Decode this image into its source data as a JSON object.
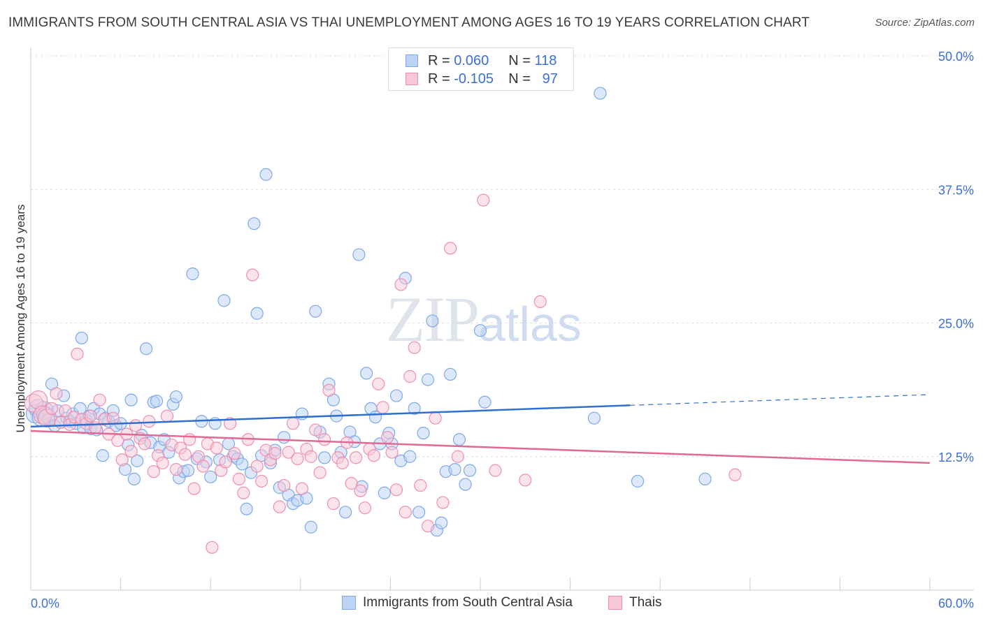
{
  "title": "IMMIGRANTS FROM SOUTH CENTRAL ASIA VS THAI UNEMPLOYMENT AMONG AGES 16 TO 19 YEARS CORRELATION CHART",
  "source": "Source: ZipAtlas.com",
  "watermark": {
    "zip": "ZIP",
    "atlas": "atlas"
  },
  "legend": {
    "rows": [
      {
        "r_label": "R =",
        "r_value": "0.060",
        "n_label": "N =",
        "n_value": "118",
        "color": "#7ea8e8",
        "fill": "#bcd3f5"
      },
      {
        "r_label": "R =",
        "r_value": "-0.105",
        "n_label": "N =",
        "n_value": "97",
        "color": "#ee8fae",
        "fill": "#f7c7d7"
      }
    ]
  },
  "bottom_legend": [
    "Immigrants from South Central Asia",
    "Thais"
  ],
  "chart_data": {
    "type": "scatter",
    "title": "IMMIGRANTS FROM SOUTH CENTRAL ASIA VS THAI UNEMPLOYMENT AMONG AGES 16 TO 19 YEARS CORRELATION CHART",
    "xlabel": "",
    "ylabel": "Unemployment Among Ages 16 to 19 years",
    "xlim": [
      0,
      60
    ],
    "ylim": [
      0,
      50
    ],
    "x_tick_labels": [
      "0.0%",
      "60.0%"
    ],
    "y_ticks": [
      12.5,
      25.0,
      37.5,
      50.0
    ],
    "y_tick_labels": [
      "12.5%",
      "25.0%",
      "37.5%",
      "50.0%"
    ],
    "grid": true,
    "series": [
      {
        "name": "Immigrants from South Central Asia",
        "color": "#7ea8e8",
        "fill": "#bcd3f5",
        "trend": {
          "x0": 0,
          "y0": 15.3,
          "x1": 40,
          "y1": 17.3,
          "dash_to_x": 60,
          "dash_to_y": 18.3,
          "color": "#2f6fd0"
        },
        "points": [
          [
            0.3,
            16.5
          ],
          [
            0.5,
            17
          ],
          [
            0.7,
            16.2
          ],
          [
            0.9,
            16.8
          ],
          [
            1.0,
            16.3
          ],
          [
            1.2,
            16.0
          ],
          [
            1.4,
            19.3
          ],
          [
            1.6,
            15.4
          ],
          [
            1.8,
            16.8
          ],
          [
            2.0,
            15.7
          ],
          [
            2.2,
            18.2
          ],
          [
            2.4,
            16.1
          ],
          [
            2.6,
            15.8
          ],
          [
            2.8,
            16.5
          ],
          [
            3.0,
            15.6
          ],
          [
            3.3,
            17.0
          ],
          [
            3.5,
            15.2
          ],
          [
            3.7,
            15.9
          ],
          [
            3.4,
            23.6
          ],
          [
            3.9,
            16.3
          ],
          [
            4.0,
            15.1
          ],
          [
            4.2,
            17.0
          ],
          [
            4.4,
            15.0
          ],
          [
            4.6,
            16.5
          ],
          [
            4.8,
            12.6
          ],
          [
            5.0,
            16.1
          ],
          [
            5.2,
            15.8
          ],
          [
            5.5,
            16.8
          ],
          [
            5.7,
            15.4
          ],
          [
            6.0,
            15.6
          ],
          [
            6.3,
            11.3
          ],
          [
            6.5,
            13.6
          ],
          [
            6.7,
            17.8
          ],
          [
            6.9,
            10.4
          ],
          [
            7.1,
            12.1
          ],
          [
            7.4,
            14.5
          ],
          [
            7.7,
            22.6
          ],
          [
            8.0,
            13.8
          ],
          [
            8.2,
            17.6
          ],
          [
            8.4,
            17.7
          ],
          [
            8.6,
            13.4
          ],
          [
            8.9,
            14.1
          ],
          [
            9.2,
            12.9
          ],
          [
            9.5,
            17.4
          ],
          [
            9.7,
            18.1
          ],
          [
            9.9,
            10.5
          ],
          [
            10.2,
            11.1
          ],
          [
            10.5,
            11.2
          ],
          [
            10.8,
            29.6
          ],
          [
            11.1,
            12.3
          ],
          [
            11.4,
            15.8
          ],
          [
            11.7,
            12.0
          ],
          [
            12.0,
            10.6
          ],
          [
            12.3,
            15.6
          ],
          [
            12.6,
            12.2
          ],
          [
            12.9,
            27.1
          ],
          [
            13.2,
            13.7
          ],
          [
            13.5,
            12.5
          ],
          [
            13.8,
            12.3
          ],
          [
            14.1,
            11.8
          ],
          [
            14.4,
            7.6
          ],
          [
            14.7,
            11.0
          ],
          [
            14.9,
            34.3
          ],
          [
            15.1,
            25.9
          ],
          [
            15.4,
            12.6
          ],
          [
            15.7,
            38.9
          ],
          [
            16.0,
            11.9
          ],
          [
            16.3,
            13.1
          ],
          [
            16.6,
            9.6
          ],
          [
            16.9,
            14.3
          ],
          [
            17.2,
            8.9
          ],
          [
            17.5,
            8.1
          ],
          [
            17.8,
            8.4
          ],
          [
            18.1,
            16.5
          ],
          [
            18.4,
            8.6
          ],
          [
            18.7,
            5.9
          ],
          [
            19.0,
            26.1
          ],
          [
            19.3,
            14.8
          ],
          [
            19.6,
            12.4
          ],
          [
            19.9,
            19.3
          ],
          [
            20.2,
            17.8
          ],
          [
            20.4,
            16.3
          ],
          [
            20.7,
            12.9
          ],
          [
            21.0,
            7.3
          ],
          [
            21.3,
            14.8
          ],
          [
            21.6,
            13.9
          ],
          [
            21.9,
            31.4
          ],
          [
            22.1,
            9.7
          ],
          [
            22.4,
            20.3
          ],
          [
            22.7,
            17.0
          ],
          [
            23.0,
            16.2
          ],
          [
            23.3,
            13.7
          ],
          [
            23.6,
            9.1
          ],
          [
            23.9,
            14.7
          ],
          [
            24.1,
            13.7
          ],
          [
            24.4,
            18.2
          ],
          [
            24.7,
            12.1
          ],
          [
            25.0,
            29.2
          ],
          [
            25.3,
            12.5
          ],
          [
            25.6,
            17.0
          ],
          [
            25.9,
            7.3
          ],
          [
            26.2,
            14.7
          ],
          [
            26.5,
            19.7
          ],
          [
            26.8,
            25.2
          ],
          [
            27.1,
            5.6
          ],
          [
            27.4,
            6.3
          ],
          [
            27.7,
            11.1
          ],
          [
            28.0,
            20.2
          ],
          [
            28.3,
            11.3
          ],
          [
            28.6,
            14.1
          ],
          [
            29.0,
            9.9
          ],
          [
            29.3,
            11.2
          ],
          [
            30.0,
            24.3
          ],
          [
            30.3,
            17.6
          ],
          [
            37.6,
            16.1
          ],
          [
            38.0,
            46.5
          ],
          [
            40.5,
            10.2
          ],
          [
            45.0,
            10.4
          ]
        ]
      },
      {
        "name": "Thais",
        "color": "#ee8fae",
        "fill": "#f7c7d7",
        "trend": {
          "x0": 0,
          "y0": 14.9,
          "x1": 60,
          "y1": 11.9,
          "color": "#e06a94"
        },
        "points": [
          [
            0.2,
            17.5
          ],
          [
            0.5,
            17.8
          ],
          [
            0.8,
            16.4
          ],
          [
            1.1,
            16.1
          ],
          [
            1.4,
            17.0
          ],
          [
            1.7,
            18.4
          ],
          [
            2.0,
            15.7
          ],
          [
            2.3,
            16.8
          ],
          [
            2.6,
            15.5
          ],
          [
            2.9,
            16.2
          ],
          [
            3.1,
            22.1
          ],
          [
            3.4,
            16.0
          ],
          [
            3.7,
            15.6
          ],
          [
            4.0,
            16.3
          ],
          [
            4.3,
            15.2
          ],
          [
            4.6,
            17.8
          ],
          [
            4.9,
            16.0
          ],
          [
            5.2,
            14.6
          ],
          [
            5.5,
            16.1
          ],
          [
            5.8,
            14.0
          ],
          [
            6.1,
            12.2
          ],
          [
            6.4,
            14.6
          ],
          [
            6.7,
            13.0
          ],
          [
            7.0,
            15.4
          ],
          [
            7.3,
            14.2
          ],
          [
            7.6,
            13.7
          ],
          [
            7.9,
            15.8
          ],
          [
            8.2,
            11.1
          ],
          [
            8.5,
            12.6
          ],
          [
            8.8,
            11.9
          ],
          [
            9.1,
            16.3
          ],
          [
            9.4,
            13.6
          ],
          [
            9.7,
            11.3
          ],
          [
            10.0,
            13.3
          ],
          [
            10.3,
            12.7
          ],
          [
            10.6,
            14.1
          ],
          [
            10.9,
            9.5
          ],
          [
            11.2,
            12.5
          ],
          [
            11.5,
            11.6
          ],
          [
            11.8,
            13.7
          ],
          [
            12.1,
            4.0
          ],
          [
            12.4,
            13.3
          ],
          [
            12.7,
            11.2
          ],
          [
            13.0,
            12.0
          ],
          [
            13.3,
            15.6
          ],
          [
            13.6,
            12.8
          ],
          [
            13.9,
            10.4
          ],
          [
            14.2,
            9.1
          ],
          [
            14.5,
            14.1
          ],
          [
            14.8,
            29.5
          ],
          [
            15.1,
            11.6
          ],
          [
            15.4,
            10.2
          ],
          [
            15.7,
            13.1
          ],
          [
            16.0,
            12.2
          ],
          [
            16.3,
            12.8
          ],
          [
            16.6,
            7.8
          ],
          [
            16.9,
            9.8
          ],
          [
            17.2,
            12.9
          ],
          [
            17.5,
            15.6
          ],
          [
            17.8,
            12.3
          ],
          [
            18.1,
            9.5
          ],
          [
            18.4,
            13.2
          ],
          [
            18.7,
            12.5
          ],
          [
            19.0,
            15.0
          ],
          [
            19.3,
            11.0
          ],
          [
            19.6,
            14.1
          ],
          [
            19.9,
            18.7
          ],
          [
            20.2,
            8.1
          ],
          [
            20.5,
            12.4
          ],
          [
            20.8,
            11.9
          ],
          [
            21.1,
            13.8
          ],
          [
            21.4,
            10.0
          ],
          [
            21.7,
            12.4
          ],
          [
            22.0,
            9.3
          ],
          [
            22.3,
            7.7
          ],
          [
            22.6,
            13.2
          ],
          [
            22.9,
            12.6
          ],
          [
            23.2,
            19.3
          ],
          [
            23.5,
            17.1
          ],
          [
            23.8,
            14.3
          ],
          [
            24.1,
            12.9
          ],
          [
            24.4,
            9.4
          ],
          [
            24.7,
            28.6
          ],
          [
            25.0,
            7.3
          ],
          [
            25.3,
            20.0
          ],
          [
            25.6,
            22.7
          ],
          [
            26.0,
            9.8
          ],
          [
            26.5,
            6.0
          ],
          [
            27.0,
            16.1
          ],
          [
            27.5,
            8.2
          ],
          [
            28.0,
            32.0
          ],
          [
            28.5,
            12.5
          ],
          [
            30.2,
            36.5
          ],
          [
            31.0,
            11.2
          ],
          [
            33.0,
            10.3
          ],
          [
            34.0,
            27.0
          ],
          [
            47.0,
            10.8
          ]
        ]
      }
    ]
  }
}
